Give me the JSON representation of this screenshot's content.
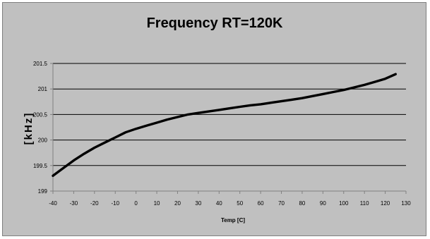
{
  "chart_data": {
    "type": "line",
    "title": "Frequency RT=120K",
    "xlabel": "Temp [C]",
    "ylabel": "[kHz]",
    "xlim": [
      -40,
      130
    ],
    "ylim": [
      199,
      201.5
    ],
    "xticks": [
      "-40",
      "-30",
      "-20",
      "-10",
      "0",
      "10",
      "20",
      "30",
      "40",
      "50",
      "60",
      "70",
      "80",
      "90",
      "100",
      "110",
      "120",
      "130"
    ],
    "yticks": [
      "199",
      "199.5",
      "200",
      "200.5",
      "201",
      "201.5"
    ],
    "grid": true,
    "series": [
      {
        "color": "#000000",
        "x": [
          -40,
          -35,
          -30,
          -25,
          -20,
          -15,
          -10,
          -5,
          0,
          5,
          10,
          15,
          20,
          25,
          30,
          35,
          40,
          45,
          50,
          55,
          60,
          65,
          70,
          75,
          80,
          85,
          90,
          95,
          100,
          105,
          110,
          115,
          120,
          125
        ],
        "y": [
          199.3,
          199.45,
          199.6,
          199.73,
          199.85,
          199.95,
          200.05,
          200.15,
          200.22,
          200.28,
          200.34,
          200.4,
          200.45,
          200.5,
          200.53,
          200.56,
          200.59,
          200.62,
          200.65,
          200.68,
          200.7,
          200.73,
          200.76,
          200.79,
          200.82,
          200.86,
          200.9,
          200.94,
          200.98,
          201.03,
          201.08,
          201.14,
          201.2,
          201.29
        ]
      }
    ]
  }
}
